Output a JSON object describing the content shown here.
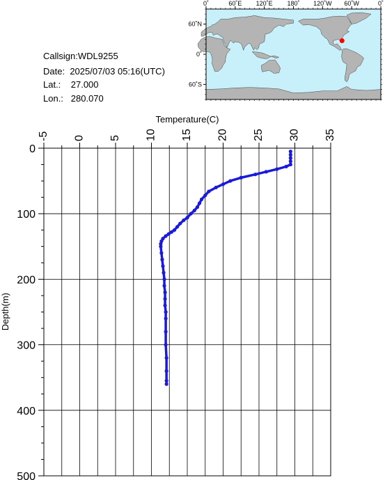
{
  "info": {
    "callsign_label": "Callsign:",
    "callsign": "WDL9255",
    "date_label": "Date:",
    "date": "2025/07/03 05:16(UTC)",
    "lat_label": "Lat.:",
    "lat": "27.000",
    "lon_label": "Lon.:",
    "lon": "280.070"
  },
  "map": {
    "top_ticks": [
      "0˚",
      "60˚E",
      "120˚E",
      "180˚",
      "120˚W",
      "60˚W",
      "0˚"
    ],
    "left_ticks": [
      "60˚N",
      "0˚",
      "60˚S"
    ],
    "marker_lon": 280.07,
    "marker_lat": 27.0,
    "ocean_color": "#c8f0fa",
    "land_color": "#b4b4b4",
    "marker_color": "#ff0000"
  },
  "chart_data": {
    "type": "line",
    "title": "",
    "xlabel": "Temperature(C)",
    "ylabel": "Depth(m)",
    "xlim": [
      -5,
      35
    ],
    "ylim": [
      500,
      0
    ],
    "x_ticks": [
      "-5",
      "0",
      "5",
      "10",
      "15",
      "20",
      "25",
      "30",
      "35"
    ],
    "y_ticks": [
      "0",
      "100",
      "200",
      "300",
      "400",
      "500"
    ],
    "grid": true,
    "series": [
      {
        "color": "#1a1adc",
        "x": [
          29.4,
          29.4,
          29.4,
          29.4,
          29.4,
          28.8,
          27.5,
          26.0,
          24.5,
          22.5,
          21.0,
          20.0,
          19.0,
          18.0,
          17.5,
          17.0,
          16.7,
          16.4,
          16.0,
          15.5,
          15.0,
          14.5,
          14.0,
          13.6,
          13.2,
          12.8,
          12.4,
          12.0,
          11.6,
          11.4,
          11.3,
          11.3,
          11.4,
          11.5,
          11.6,
          11.7,
          11.8,
          11.8,
          11.9,
          11.9,
          11.9,
          12.0,
          12.0,
          12.0,
          12.0,
          12.1,
          12.1,
          12.1,
          12.1
        ],
        "y": [
          5,
          10,
          15,
          20,
          25,
          28,
          32,
          36,
          40,
          45,
          50,
          55,
          60,
          66,
          72,
          78,
          84,
          90,
          95,
          100,
          106,
          110,
          115,
          120,
          125,
          128,
          131,
          134,
          138,
          142,
          146,
          150,
          160,
          170,
          180,
          190,
          200,
          210,
          220,
          230,
          240,
          250,
          260,
          280,
          300,
          320,
          340,
          355,
          360
        ]
      }
    ]
  }
}
